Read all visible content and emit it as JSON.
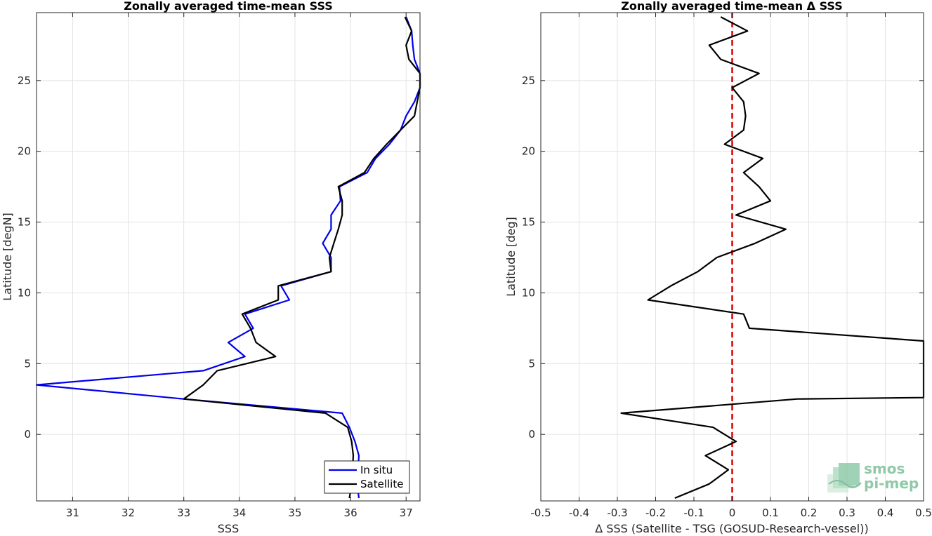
{
  "chart_data": [
    {
      "type": "line",
      "title": "Zonally averaged time-mean SSS",
      "xlabel": "SSS",
      "ylabel": "Latitude [degN]",
      "xlim": [
        30.35,
        37.25
      ],
      "ylim": [
        -4.7,
        29.8
      ],
      "xticks": [
        31,
        32,
        33,
        34,
        35,
        36,
        37
      ],
      "yticks": [
        0,
        5,
        10,
        15,
        20,
        25
      ],
      "grid": true,
      "legend_position": "bottom-right",
      "series": [
        {
          "name": "In situ",
          "color": "#0000ee",
          "points": [
            [
              36.15,
              -4.5
            ],
            [
              36.12,
              -3.5
            ],
            [
              36.15,
              -1.5
            ],
            [
              36.08,
              -0.5
            ],
            [
              35.98,
              0.5
            ],
            [
              35.85,
              1.5
            ],
            [
              33.0,
              2.5
            ],
            [
              30.35,
              3.5
            ],
            [
              33.35,
              4.5
            ],
            [
              34.1,
              5.5
            ],
            [
              33.8,
              6.5
            ],
            [
              34.25,
              7.5
            ],
            [
              34.1,
              8.5
            ],
            [
              34.9,
              9.5
            ],
            [
              34.75,
              10.5
            ],
            [
              35.65,
              11.5
            ],
            [
              35.65,
              12.5
            ],
            [
              35.5,
              13.5
            ],
            [
              35.65,
              14.5
            ],
            [
              35.65,
              15.5
            ],
            [
              35.82,
              16.5
            ],
            [
              35.8,
              17.5
            ],
            [
              36.3,
              18.5
            ],
            [
              36.45,
              19.5
            ],
            [
              36.7,
              20.5
            ],
            [
              36.9,
              21.5
            ],
            [
              37.0,
              22.5
            ],
            [
              37.15,
              23.5
            ],
            [
              37.25,
              24.5
            ],
            [
              37.25,
              25.5
            ],
            [
              37.15,
              26.5
            ],
            [
              37.12,
              27.5
            ],
            [
              37.1,
              28.5
            ],
            [
              37.0,
              29.5
            ]
          ]
        },
        {
          "name": "Satellite",
          "color": "#000000",
          "points": [
            [
              35.98,
              -4.5
            ],
            [
              36.02,
              -3.5
            ],
            [
              36.05,
              -1.5
            ],
            [
              36.02,
              -0.5
            ],
            [
              35.95,
              0.5
            ],
            [
              35.55,
              1.5
            ],
            [
              33.0,
              2.5
            ],
            [
              33.35,
              3.5
            ],
            [
              33.6,
              4.5
            ],
            [
              34.65,
              5.5
            ],
            [
              34.3,
              6.5
            ],
            [
              34.2,
              7.5
            ],
            [
              34.05,
              8.5
            ],
            [
              34.7,
              9.5
            ],
            [
              34.7,
              10.5
            ],
            [
              35.65,
              11.5
            ],
            [
              35.62,
              12.5
            ],
            [
              35.7,
              13.5
            ],
            [
              35.78,
              14.5
            ],
            [
              35.85,
              15.5
            ],
            [
              35.85,
              16.5
            ],
            [
              35.78,
              17.5
            ],
            [
              36.25,
              18.5
            ],
            [
              36.42,
              19.5
            ],
            [
              36.65,
              20.5
            ],
            [
              36.9,
              21.5
            ],
            [
              37.15,
              22.5
            ],
            [
              37.2,
              23.5
            ],
            [
              37.25,
              24.5
            ],
            [
              37.25,
              25.5
            ],
            [
              37.05,
              26.5
            ],
            [
              37.0,
              27.5
            ],
            [
              37.1,
              28.5
            ],
            [
              36.98,
              29.5
            ]
          ]
        }
      ]
    },
    {
      "type": "line",
      "title": "Zonally averaged time-mean Δ SSS",
      "xlabel": "Δ SSS (Satellite - TSG (GOSUD-Research-vessel))",
      "ylabel": "Latitude [deg]",
      "xlim": [
        -0.5,
        0.5
      ],
      "ylim": [
        -4.7,
        29.8
      ],
      "xticks": [
        -0.5,
        -0.4,
        -0.3,
        -0.2,
        -0.1,
        0,
        0.1,
        0.2,
        0.3,
        0.4,
        0.5
      ],
      "xtick_labels": [
        "-0.5",
        "-0.4",
        "-0.3",
        "-0.2",
        "-0.1",
        "0",
        "0.1",
        "0.2",
        "0.3",
        "0.4",
        "0.5"
      ],
      "yticks": [
        0,
        5,
        10,
        15,
        20,
        25
      ],
      "grid": true,
      "reference_line": {
        "x": 0,
        "color": "#dd0000",
        "style": "dashed"
      },
      "series": [
        {
          "color": "#000000",
          "points": [
            [
              -0.15,
              -4.5
            ],
            [
              -0.06,
              -3.5
            ],
            [
              -0.01,
              -2.5
            ],
            [
              -0.07,
              -1.5
            ],
            [
              0.01,
              -0.5
            ],
            [
              -0.05,
              0.5
            ],
            [
              -0.29,
              1.5
            ],
            [
              0.17,
              2.5
            ],
            [
              0.5,
              2.6
            ],
            [
              0.5,
              6.6
            ],
            [
              0.045,
              7.5
            ],
            [
              0.03,
              8.5
            ],
            [
              -0.22,
              9.5
            ],
            [
              -0.16,
              10.5
            ],
            [
              -0.09,
              11.5
            ],
            [
              -0.04,
              12.5
            ],
            [
              0.06,
              13.5
            ],
            [
              0.14,
              14.5
            ],
            [
              0.01,
              15.5
            ],
            [
              0.1,
              16.5
            ],
            [
              0.07,
              17.5
            ],
            [
              0.03,
              18.5
            ],
            [
              0.08,
              19.5
            ],
            [
              -0.02,
              20.5
            ],
            [
              0.03,
              21.5
            ],
            [
              0.035,
              22.5
            ],
            [
              0.03,
              23.5
            ],
            [
              0.0,
              24.5
            ],
            [
              0.07,
              25.5
            ],
            [
              -0.03,
              26.5
            ],
            [
              -0.06,
              27.5
            ],
            [
              0.04,
              28.5
            ],
            [
              -0.03,
              29.5
            ]
          ]
        }
      ]
    }
  ],
  "logo": {
    "line1": "smos",
    "line2": "pi-mep"
  },
  "colors": {
    "in_situ": "#0000ee",
    "satellite": "#000000",
    "zero_line": "#dd0000",
    "grid": "#e3e3e3",
    "axis": "#262626"
  }
}
